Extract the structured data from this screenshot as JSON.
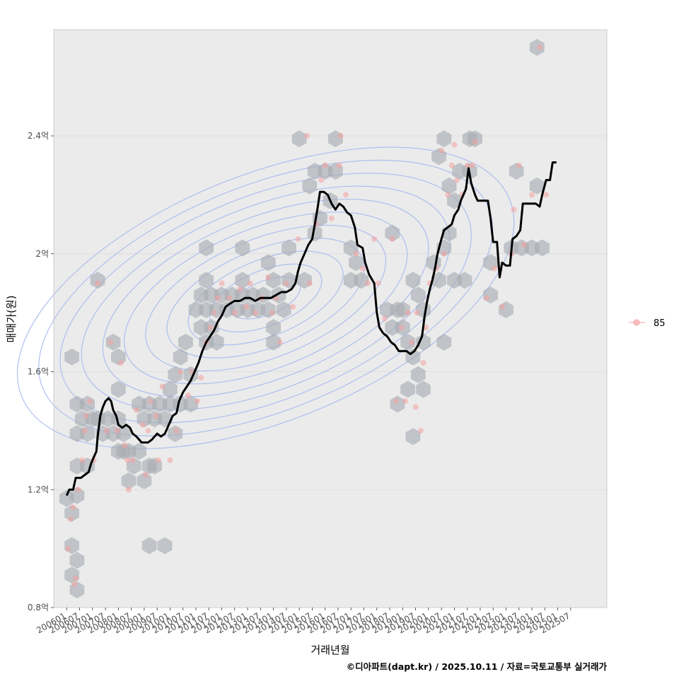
{
  "chart_data": {
    "type": "scatter",
    "xlabel": "거래년월",
    "ylabel": "매매가(원)",
    "caption": "©디아파트(dapt.kr) / 2025.10.11 / 자료=국토교통부 실거래가",
    "legend": {
      "label": "85",
      "placement": "right",
      "color": "#f4a0a0"
    },
    "y_unit": "억",
    "ylim": [
      0.8,
      2.76
    ],
    "xlim": [
      2005.5,
      2026.9
    ],
    "y_ticks": [
      {
        "value": 0.8,
        "label": "0.8억"
      },
      {
        "value": 1.2,
        "label": "1.2억"
      },
      {
        "value": 1.6,
        "label": "1.6억"
      },
      {
        "value": 2.0,
        "label": "2억"
      },
      {
        "value": 2.4,
        "label": "2.4억"
      }
    ],
    "x_ticks": [
      "200601",
      "200607",
      "200701",
      "200707",
      "200801",
      "200807",
      "200901",
      "200907",
      "201001",
      "201007",
      "201101",
      "201107",
      "201201",
      "201207",
      "201301",
      "201307",
      "201401",
      "201407",
      "201501",
      "201507",
      "201601",
      "201607",
      "201701",
      "201707",
      "201801",
      "201807",
      "201901",
      "201907",
      "202001",
      "202007",
      "202101",
      "202107",
      "202201",
      "202207",
      "202301",
      "202307",
      "202401",
      "202407",
      "202501",
      "202507"
    ],
    "colors": {
      "panel": "#ebebeb",
      "grid": "#dcdcdc",
      "hex": "#a9aeb3",
      "points": "#f4a0a0",
      "trend": "#000000",
      "contour": "#a7b9ef"
    },
    "trend_line": [
      [
        2006.0,
        1.18
      ],
      [
        2006.1,
        1.2
      ],
      [
        2006.25,
        1.2
      ],
      [
        2006.35,
        1.24
      ],
      [
        2006.55,
        1.24
      ],
      [
        2006.7,
        1.25
      ],
      [
        2006.85,
        1.26
      ],
      [
        2006.95,
        1.29
      ],
      [
        2007.05,
        1.31
      ],
      [
        2007.15,
        1.33
      ],
      [
        2007.2,
        1.38
      ],
      [
        2007.3,
        1.45
      ],
      [
        2007.4,
        1.48
      ],
      [
        2007.5,
        1.5
      ],
      [
        2007.62,
        1.51
      ],
      [
        2007.72,
        1.5
      ],
      [
        2007.8,
        1.47
      ],
      [
        2007.92,
        1.45
      ],
      [
        2008.0,
        1.42
      ],
      [
        2008.15,
        1.41
      ],
      [
        2008.3,
        1.42
      ],
      [
        2008.45,
        1.41
      ],
      [
        2008.55,
        1.39
      ],
      [
        2008.7,
        1.38
      ],
      [
        2008.8,
        1.37
      ],
      [
        2008.9,
        1.36
      ],
      [
        2009.0,
        1.36
      ],
      [
        2009.15,
        1.36
      ],
      [
        2009.3,
        1.37
      ],
      [
        2009.4,
        1.38
      ],
      [
        2009.5,
        1.39
      ],
      [
        2009.65,
        1.38
      ],
      [
        2009.8,
        1.39
      ],
      [
        2009.95,
        1.42
      ],
      [
        2010.1,
        1.45
      ],
      [
        2010.25,
        1.46
      ],
      [
        2010.35,
        1.5
      ],
      [
        2010.5,
        1.53
      ],
      [
        2010.65,
        1.55
      ],
      [
        2010.8,
        1.57
      ],
      [
        2010.95,
        1.6
      ],
      [
        2011.1,
        1.63
      ],
      [
        2011.25,
        1.67
      ],
      [
        2011.4,
        1.7
      ],
      [
        2011.55,
        1.72
      ],
      [
        2011.7,
        1.74
      ],
      [
        2011.85,
        1.77
      ],
      [
        2012.0,
        1.79
      ],
      [
        2012.15,
        1.82
      ],
      [
        2012.3,
        1.83
      ],
      [
        2012.5,
        1.84
      ],
      [
        2012.7,
        1.84
      ],
      [
        2012.9,
        1.85
      ],
      [
        2013.1,
        1.85
      ],
      [
        2013.3,
        1.84
      ],
      [
        2013.5,
        1.85
      ],
      [
        2013.7,
        1.85
      ],
      [
        2013.9,
        1.85
      ],
      [
        2014.1,
        1.86
      ],
      [
        2014.3,
        1.87
      ],
      [
        2014.5,
        1.87
      ],
      [
        2014.7,
        1.88
      ],
      [
        2014.85,
        1.9
      ],
      [
        2014.95,
        1.94
      ],
      [
        2015.05,
        1.97
      ],
      [
        2015.2,
        2.0
      ],
      [
        2015.35,
        2.03
      ],
      [
        2015.5,
        2.05
      ],
      [
        2015.6,
        2.1
      ],
      [
        2015.7,
        2.15
      ],
      [
        2015.8,
        2.21
      ],
      [
        2015.95,
        2.21
      ],
      [
        2016.1,
        2.2
      ],
      [
        2016.25,
        2.17
      ],
      [
        2016.4,
        2.15
      ],
      [
        2016.55,
        2.17
      ],
      [
        2016.7,
        2.16
      ],
      [
        2016.85,
        2.14
      ],
      [
        2017.0,
        2.13
      ],
      [
        2017.15,
        2.09
      ],
      [
        2017.25,
        2.03
      ],
      [
        2017.45,
        2.02
      ],
      [
        2017.55,
        1.97
      ],
      [
        2017.7,
        1.93
      ],
      [
        2017.9,
        1.9
      ],
      [
        2018.0,
        1.8
      ],
      [
        2018.1,
        1.75
      ],
      [
        2018.25,
        1.73
      ],
      [
        2018.4,
        1.72
      ],
      [
        2018.55,
        1.7
      ],
      [
        2018.7,
        1.69
      ],
      [
        2018.85,
        1.67
      ],
      [
        2019.0,
        1.67
      ],
      [
        2019.15,
        1.67
      ],
      [
        2019.3,
        1.66
      ],
      [
        2019.45,
        1.67
      ],
      [
        2019.6,
        1.69
      ],
      [
        2019.75,
        1.72
      ],
      [
        2019.85,
        1.79
      ],
      [
        2019.95,
        1.84
      ],
      [
        2020.05,
        1.88
      ],
      [
        2020.15,
        1.91
      ],
      [
        2020.25,
        1.95
      ],
      [
        2020.35,
        2.0
      ],
      [
        2020.5,
        2.05
      ],
      [
        2020.6,
        2.08
      ],
      [
        2020.75,
        2.09
      ],
      [
        2020.9,
        2.1
      ],
      [
        2021.0,
        2.13
      ],
      [
        2021.15,
        2.15
      ],
      [
        2021.25,
        2.18
      ],
      [
        2021.35,
        2.2
      ],
      [
        2021.45,
        2.22
      ],
      [
        2021.55,
        2.29
      ],
      [
        2021.65,
        2.24
      ],
      [
        2021.8,
        2.2
      ],
      [
        2021.9,
        2.18
      ],
      [
        2022.1,
        2.18
      ],
      [
        2022.3,
        2.18
      ],
      [
        2022.4,
        2.12
      ],
      [
        2022.5,
        2.04
      ],
      [
        2022.65,
        2.04
      ],
      [
        2022.75,
        1.92
      ],
      [
        2022.85,
        1.97
      ],
      [
        2023.0,
        1.96
      ],
      [
        2023.15,
        1.96
      ],
      [
        2023.25,
        2.05
      ],
      [
        2023.4,
        2.06
      ],
      [
        2023.55,
        2.08
      ],
      [
        2023.65,
        2.17
      ],
      [
        2023.8,
        2.17
      ],
      [
        2024.0,
        2.17
      ],
      [
        2024.15,
        2.17
      ],
      [
        2024.3,
        2.16
      ],
      [
        2024.4,
        2.2
      ],
      [
        2024.55,
        2.25
      ],
      [
        2024.7,
        2.25
      ],
      [
        2024.8,
        2.31
      ],
      [
        2024.95,
        2.31
      ]
    ],
    "points": [
      [
        2006.05,
        1.0
      ],
      [
        2006.15,
        1.1
      ],
      [
        2006.25,
        1.14
      ],
      [
        2006.3,
        0.88
      ],
      [
        2006.35,
        0.9
      ],
      [
        2006.45,
        1.2
      ],
      [
        2006.6,
        1.3
      ],
      [
        2006.7,
        1.4
      ],
      [
        2006.75,
        1.45
      ],
      [
        2006.9,
        1.5
      ],
      [
        2007.05,
        1.3
      ],
      [
        2007.2,
        1.9
      ],
      [
        2007.55,
        1.4
      ],
      [
        2007.7,
        1.7
      ],
      [
        2007.95,
        1.4
      ],
      [
        2008.1,
        1.63
      ],
      [
        2008.25,
        1.35
      ],
      [
        2008.35,
        1.3
      ],
      [
        2008.4,
        1.2
      ],
      [
        2008.55,
        1.3
      ],
      [
        2008.7,
        1.47
      ],
      [
        2008.95,
        1.42
      ],
      [
        2009.05,
        1.25
      ],
      [
        2009.15,
        1.4
      ],
      [
        2009.25,
        1.5
      ],
      [
        2009.45,
        1.45
      ],
      [
        2009.55,
        1.3
      ],
      [
        2009.7,
        1.55
      ],
      [
        2010.0,
        1.3
      ],
      [
        2010.25,
        1.4
      ],
      [
        2010.4,
        1.6
      ],
      [
        2010.7,
        1.52
      ],
      [
        2010.85,
        1.6
      ],
      [
        2011.05,
        1.5
      ],
      [
        2011.2,
        1.58
      ],
      [
        2011.4,
        1.7
      ],
      [
        2011.55,
        1.75
      ],
      [
        2011.7,
        1.8
      ],
      [
        2011.85,
        1.85
      ],
      [
        2012.0,
        1.9
      ],
      [
        2012.3,
        1.85
      ],
      [
        2012.5,
        1.8
      ],
      [
        2012.7,
        1.88
      ],
      [
        2012.95,
        1.82
      ],
      [
        2013.1,
        1.9
      ],
      [
        2013.3,
        1.8
      ],
      [
        2013.55,
        1.85
      ],
      [
        2013.8,
        1.92
      ],
      [
        2013.95,
        1.8
      ],
      [
        2014.1,
        1.85
      ],
      [
        2014.25,
        1.7
      ],
      [
        2014.5,
        1.9
      ],
      [
        2014.75,
        1.82
      ],
      [
        2014.95,
        2.05
      ],
      [
        2015.3,
        2.4
      ],
      [
        2015.4,
        1.9
      ],
      [
        2015.65,
        2.1
      ],
      [
        2015.85,
        2.25
      ],
      [
        2016.0,
        2.3
      ],
      [
        2016.25,
        2.12
      ],
      [
        2016.55,
        2.3
      ],
      [
        2016.6,
        2.4
      ],
      [
        2016.8,
        2.2
      ],
      [
        2017.2,
        2.0
      ],
      [
        2017.45,
        1.95
      ],
      [
        2017.65,
        1.9
      ],
      [
        2017.9,
        2.05
      ],
      [
        2018.05,
        1.9
      ],
      [
        2018.3,
        1.78
      ],
      [
        2018.6,
        2.05
      ],
      [
        2018.75,
        1.5
      ],
      [
        2018.95,
        1.75
      ],
      [
        2019.1,
        1.5
      ],
      [
        2019.2,
        1.8
      ],
      [
        2019.35,
        1.7
      ],
      [
        2019.5,
        1.48
      ],
      [
        2019.55,
        1.8
      ],
      [
        2019.7,
        1.4
      ],
      [
        2019.8,
        1.63
      ],
      [
        2019.9,
        1.75
      ],
      [
        2020.05,
        1.9
      ],
      [
        2020.3,
        1.95
      ],
      [
        2020.5,
        2.35
      ],
      [
        2020.6,
        2.0
      ],
      [
        2020.75,
        2.2
      ],
      [
        2020.9,
        2.3
      ],
      [
        2021.0,
        2.37
      ],
      [
        2021.1,
        2.25
      ],
      [
        2021.3,
        2.2
      ],
      [
        2021.5,
        2.3
      ],
      [
        2021.7,
        2.3
      ],
      [
        2021.8,
        2.38
      ],
      [
        2022.25,
        1.85
      ],
      [
        2022.55,
        1.95
      ],
      [
        2022.85,
        1.82
      ],
      [
        2023.2,
        2.0
      ],
      [
        2023.3,
        2.15
      ],
      [
        2023.5,
        2.3
      ],
      [
        2023.7,
        2.03
      ],
      [
        2024.0,
        2.2
      ],
      [
        2024.3,
        2.7
      ],
      [
        2024.55,
        2.2
      ]
    ],
    "hexbins": [
      [
        2006.0,
        1.17
      ],
      [
        2006.2,
        1.12
      ],
      [
        2006.4,
        1.18
      ],
      [
        2006.2,
        1.01
      ],
      [
        2006.4,
        0.96
      ],
      [
        2006.2,
        0.91
      ],
      [
        2006.4,
        0.86
      ],
      [
        2006.2,
        1.65
      ],
      [
        2006.4,
        1.49
      ],
      [
        2006.4,
        1.39
      ],
      [
        2006.6,
        1.44
      ],
      [
        2006.4,
        1.28
      ],
      [
        2006.8,
        1.28
      ],
      [
        2006.8,
        1.49
      ],
      [
        2006.8,
        1.39
      ],
      [
        2007.0,
        1.44
      ],
      [
        2007.2,
        1.91
      ],
      [
        2007.2,
        1.44
      ],
      [
        2007.4,
        1.39
      ],
      [
        2007.6,
        1.44
      ],
      [
        2007.8,
        1.7
      ],
      [
        2008.0,
        1.65
      ],
      [
        2008.0,
        1.54
      ],
      [
        2007.8,
        1.39
      ],
      [
        2008.0,
        1.44
      ],
      [
        2008.2,
        1.39
      ],
      [
        2008.0,
        1.33
      ],
      [
        2008.2,
        1.33
      ],
      [
        2008.4,
        1.33
      ],
      [
        2008.4,
        1.23
      ],
      [
        2008.6,
        1.28
      ],
      [
        2008.8,
        1.33
      ],
      [
        2008.8,
        1.49
      ],
      [
        2009.0,
        1.44
      ],
      [
        2009.0,
        1.23
      ],
      [
        2009.2,
        1.28
      ],
      [
        2009.2,
        1.49
      ],
      [
        2009.4,
        1.44
      ],
      [
        2009.4,
        1.28
      ],
      [
        2009.6,
        1.49
      ],
      [
        2009.8,
        1.44
      ],
      [
        2009.2,
        1.01
      ],
      [
        2009.8,
        1.01
      ],
      [
        2010.0,
        1.49
      ],
      [
        2010.2,
        1.39
      ],
      [
        2010.0,
        1.54
      ],
      [
        2010.2,
        1.59
      ],
      [
        2010.4,
        1.65
      ],
      [
        2010.4,
        1.49
      ],
      [
        2010.6,
        1.7
      ],
      [
        2010.8,
        1.59
      ],
      [
        2010.8,
        1.49
      ],
      [
        2011.0,
        1.81
      ],
      [
        2011.2,
        1.75
      ],
      [
        2011.2,
        1.86
      ],
      [
        2011.4,
        1.7
      ],
      [
        2011.4,
        1.81
      ],
      [
        2011.6,
        1.86
      ],
      [
        2011.4,
        2.02
      ],
      [
        2011.4,
        1.91
      ],
      [
        2011.6,
        1.75
      ],
      [
        2011.8,
        1.7
      ],
      [
        2011.8,
        1.81
      ],
      [
        2012.0,
        1.86
      ],
      [
        2012.2,
        1.81
      ],
      [
        2012.4,
        1.86
      ],
      [
        2012.6,
        1.81
      ],
      [
        2012.8,
        1.86
      ],
      [
        2012.8,
        2.02
      ],
      [
        2012.8,
        1.91
      ],
      [
        2013.0,
        1.81
      ],
      [
        2013.2,
        1.86
      ],
      [
        2013.4,
        1.81
      ],
      [
        2013.6,
        1.86
      ],
      [
        2013.8,
        1.81
      ],
      [
        2013.8,
        1.97
      ],
      [
        2014.0,
        1.91
      ],
      [
        2014.0,
        1.75
      ],
      [
        2014.2,
        1.86
      ],
      [
        2014.0,
        1.7
      ],
      [
        2014.4,
        1.81
      ],
      [
        2014.6,
        2.02
      ],
      [
        2014.6,
        1.91
      ],
      [
        2015.0,
        2.39
      ],
      [
        2015.2,
        1.91
      ],
      [
        2015.4,
        2.23
      ],
      [
        2015.6,
        2.07
      ],
      [
        2015.6,
        2.28
      ],
      [
        2015.8,
        2.12
      ],
      [
        2016.0,
        2.28
      ],
      [
        2016.2,
        2.18
      ],
      [
        2016.4,
        2.39
      ],
      [
        2016.4,
        2.28
      ],
      [
        2017.0,
        2.02
      ],
      [
        2017.2,
        1.97
      ],
      [
        2017.0,
        1.91
      ],
      [
        2017.4,
        1.91
      ],
      [
        2018.6,
        2.07
      ],
      [
        2018.4,
        1.81
      ],
      [
        2018.6,
        1.75
      ],
      [
        2018.8,
        1.81
      ],
      [
        2018.8,
        1.49
      ],
      [
        2019.0,
        1.81
      ],
      [
        2019.0,
        1.75
      ],
      [
        2019.2,
        1.7
      ],
      [
        2019.2,
        1.54
      ],
      [
        2019.4,
        1.65
      ],
      [
        2019.4,
        1.91
      ],
      [
        2019.6,
        1.86
      ],
      [
        2019.4,
        1.38
      ],
      [
        2019.6,
        1.59
      ],
      [
        2019.8,
        1.54
      ],
      [
        2019.8,
        1.7
      ],
      [
        2019.8,
        1.81
      ],
      [
        2020.2,
        1.97
      ],
      [
        2020.4,
        1.91
      ],
      [
        2020.4,
        2.33
      ],
      [
        2020.6,
        2.02
      ],
      [
        2020.6,
        2.39
      ],
      [
        2020.8,
        2.23
      ],
      [
        2020.6,
        1.7
      ],
      [
        2020.8,
        2.07
      ],
      [
        2021.0,
        2.18
      ],
      [
        2021.2,
        2.28
      ],
      [
        2021.0,
        1.91
      ],
      [
        2021.4,
        1.91
      ],
      [
        2021.6,
        2.28
      ],
      [
        2021.6,
        2.39
      ],
      [
        2021.8,
        2.39
      ],
      [
        2022.4,
        1.86
      ],
      [
        2022.4,
        1.97
      ],
      [
        2023.0,
        1.81
      ],
      [
        2023.2,
        2.02
      ],
      [
        2023.4,
        2.28
      ],
      [
        2023.6,
        2.02
      ],
      [
        2024.0,
        2.02
      ],
      [
        2024.2,
        2.7
      ],
      [
        2024.2,
        2.23
      ],
      [
        2024.4,
        2.02
      ]
    ],
    "contour_center": [
      2013.7,
      1.85
    ]
  }
}
